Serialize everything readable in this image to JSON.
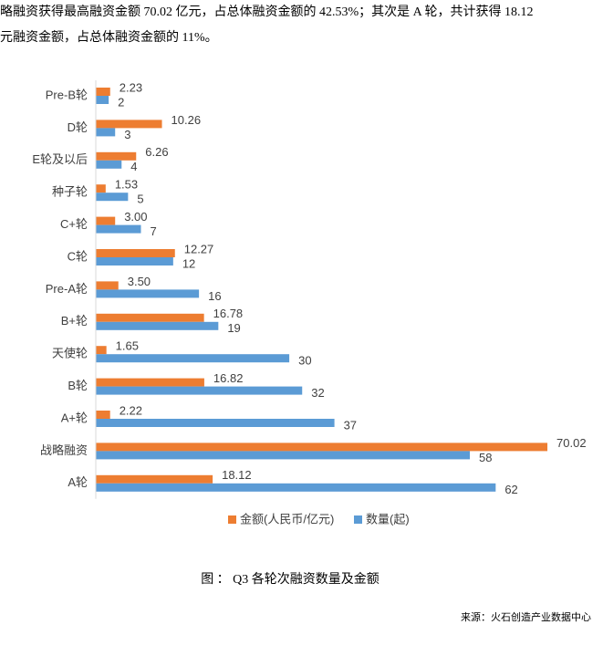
{
  "intro": [
    "略融资获得最高融资金额 70.02 亿元，占总体融资金额的 42.53%；其次是 A 轮，共计获得 18.12",
    "元融资金额，占总体融资金额的 11%。"
  ],
  "chart_data": {
    "type": "hbar",
    "categories": [
      "Pre-B轮",
      "D轮",
      "E轮及以后",
      "种子轮",
      "C+轮",
      "C轮",
      "Pre-A轮",
      "B+轮",
      "天使轮",
      "B轮",
      "A+轮",
      "战略融资",
      "A轮"
    ],
    "series": [
      {
        "name": "金额(人民币/亿元)",
        "color": "#ED7D31",
        "values": [
          2.23,
          10.26,
          6.26,
          1.53,
          3.0,
          12.27,
          3.5,
          16.78,
          1.65,
          16.82,
          2.22,
          70.02,
          18.12
        ],
        "value_labels": [
          "2.23",
          "10.26",
          "6.26",
          "1.53",
          "3.00",
          "12.27",
          "3.50",
          "16.78",
          "1.65",
          "16.82",
          "2.22",
          "70.02",
          "18.12"
        ]
      },
      {
        "name": "数量(起)",
        "color": "#5B9BD5",
        "values": [
          2,
          3,
          4,
          5,
          7,
          12,
          16,
          19,
          30,
          32,
          37,
          58,
          62
        ]
      }
    ],
    "legend": "bottom"
  },
  "caption": "图 ： Q3 各轮次融资数量及金额",
  "source": "来源：火石创造产业数据中心"
}
